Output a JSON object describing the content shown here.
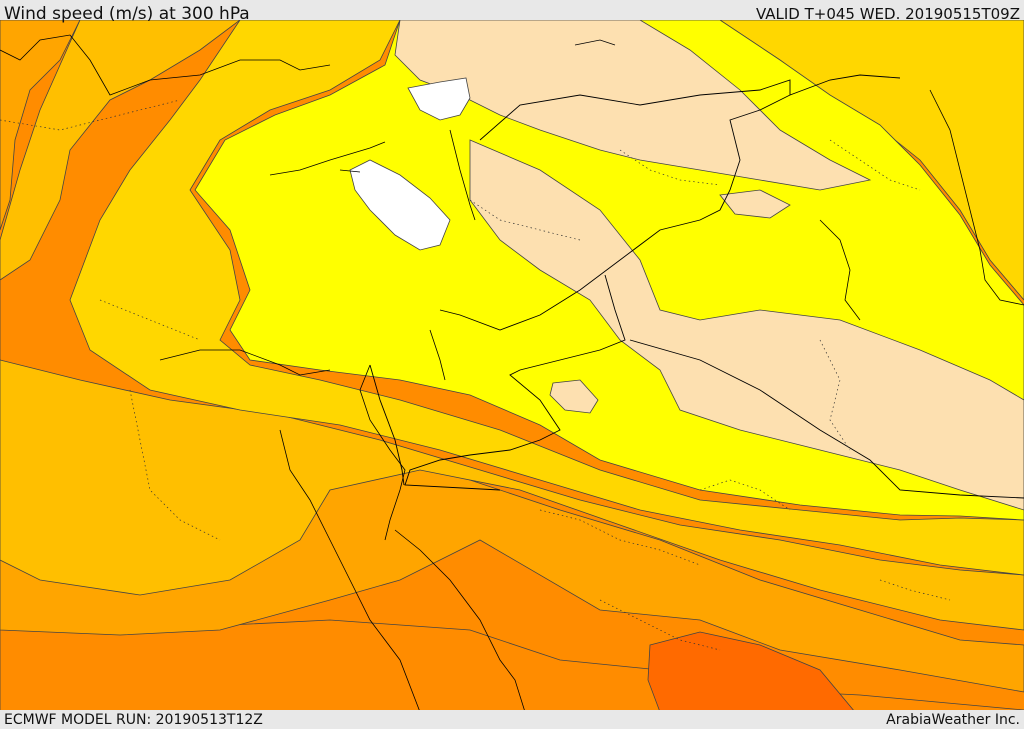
{
  "header": {
    "title": "Wind speed (m/s) at 300 hPa",
    "valid": "VALID T+045 WED. 20190515T09Z"
  },
  "footer": {
    "model_run": "ECMWF MODEL RUN: 20190513T12Z",
    "credit": "ArabiaWeather Inc."
  },
  "map": {
    "colors": {
      "band_white": "#ffffff",
      "band_tan": "#fde0b0",
      "band_yellow": "#ffff00",
      "band_gold": "#ffd700",
      "band_amber": "#ffbf00",
      "band_orange": "#ffa500",
      "band_dark_orange": "#ff8c00",
      "band_deep_orange": "#ff6a00",
      "contour_line": "#444444",
      "coast_border_line": "#000000"
    }
  }
}
